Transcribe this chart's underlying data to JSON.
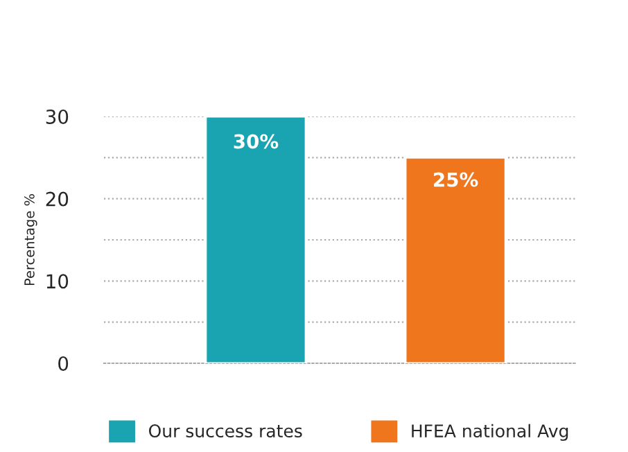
{
  "chart_data": {
    "type": "bar",
    "ylabel": "Percentage %",
    "categories": [
      null,
      null
    ],
    "series": [
      {
        "name": "Our success rates",
        "color": "#1aa3b0",
        "values": [
          30,
          null
        ],
        "value_labels": [
          "30%",
          null
        ]
      },
      {
        "name": "HFEA national Avg",
        "color": "#f0761e",
        "values": [
          null,
          25
        ],
        "value_labels": [
          null,
          "25%"
        ]
      }
    ],
    "ylim": [
      0,
      30
    ],
    "yticks": [
      0,
      {
        "value": 5,
        "label": null
      },
      10,
      {
        "value": 15,
        "label": null
      },
      20,
      {
        "value": 25,
        "label": null
      },
      30
    ],
    "grid": "y",
    "legend": "bottom"
  }
}
